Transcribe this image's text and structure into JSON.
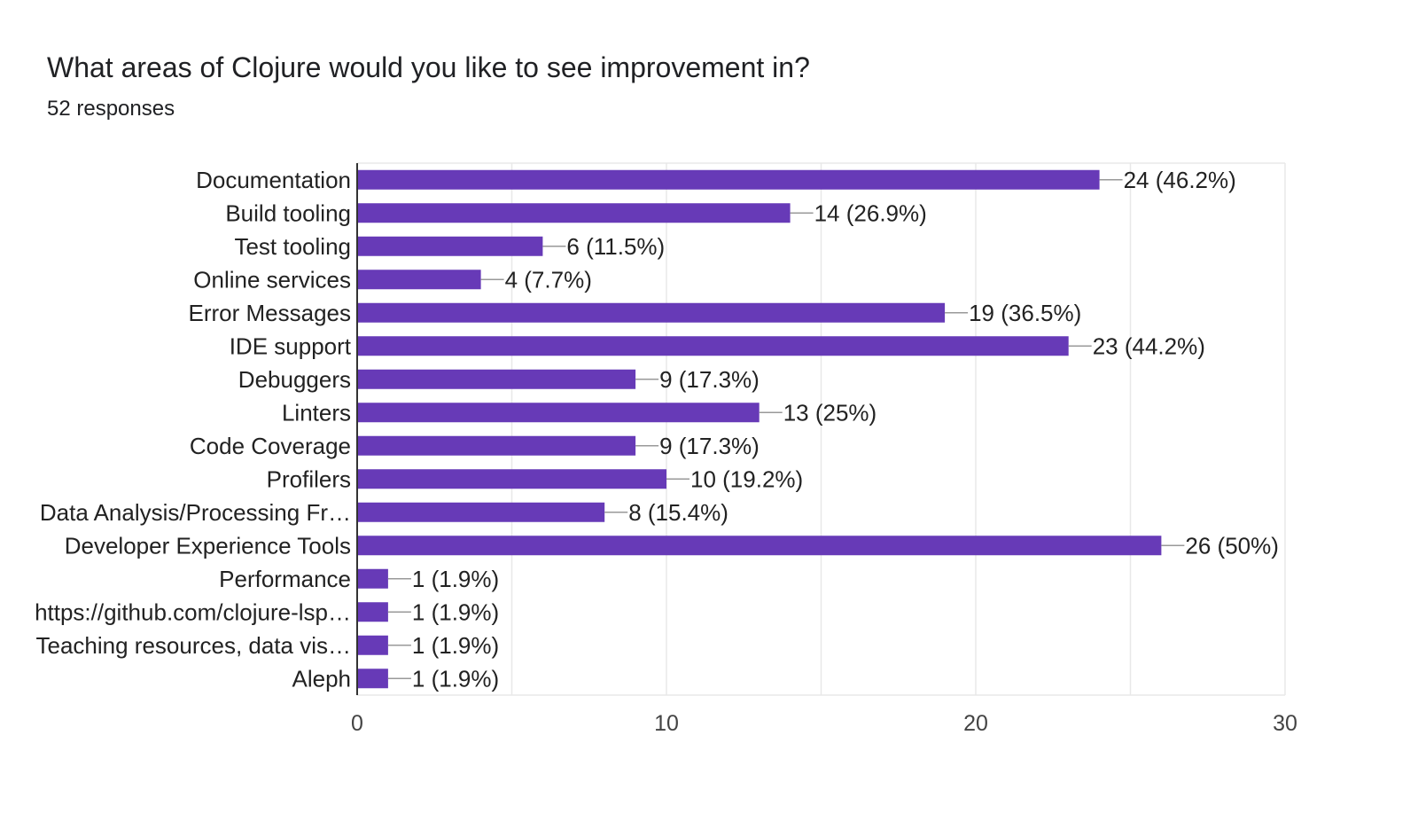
{
  "header": {
    "title": "What areas of Clojure would you like to see improvement in?",
    "subtitle": "52 responses"
  },
  "colors": {
    "bar": "#673ab7",
    "grid": "#e8e8e8",
    "axis": "#333333",
    "leader": "#999999"
  },
  "chart_data": {
    "type": "bar",
    "orientation": "horizontal",
    "title": "What areas of Clojure would you like to see improvement in?",
    "subtitle": "52 responses",
    "categories": [
      "Documentation",
      "Build tooling",
      "Test tooling",
      "Online services",
      "Error Messages",
      "IDE support",
      "Debuggers",
      "Linters",
      "Code Coverage",
      "Profilers",
      "Data Analysis/Processing Fr…",
      "Developer Experience Tools",
      "Performance",
      "https://github.com/clojure-lsp…",
      "Teaching resources, data vis…",
      "Aleph"
    ],
    "values": [
      24,
      14,
      6,
      4,
      19,
      23,
      9,
      13,
      9,
      10,
      8,
      26,
      1,
      1,
      1,
      1
    ],
    "data_labels": [
      "24 (46.2%)",
      "14 (26.9%)",
      "6 (11.5%)",
      "4 (7.7%)",
      "19 (36.5%)",
      "23 (44.2%)",
      "9 (17.3%)",
      "13 (25%)",
      "9 (17.3%)",
      "10 (19.2%)",
      "8 (15.4%)",
      "26 (50%)",
      "1 (1.9%)",
      "1 (1.9%)",
      "1 (1.9%)",
      "1 (1.9%)"
    ],
    "xlim": [
      0,
      30
    ],
    "xticks": [
      0,
      10,
      20,
      30
    ],
    "xtick_labels": [
      "0",
      "10",
      "20",
      "30"
    ],
    "minor_grid_step": 5,
    "xlabel": "",
    "ylabel": "",
    "grid": true,
    "legend": "none"
  }
}
